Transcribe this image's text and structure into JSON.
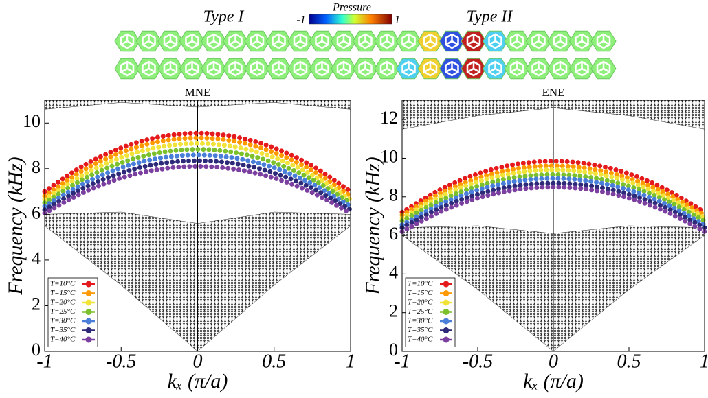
{
  "inset": {
    "left_label": "Type I",
    "right_label": "Type II",
    "colorbar_label": "Pressure",
    "colorbar_ticks": [
      -1,
      1
    ]
  },
  "chart_data": [
    {
      "type": "line",
      "title": "MNE",
      "xlabel": "kₓ (π/a)",
      "ylabel": "Frequency (kHz)",
      "xlim": [
        -1,
        1
      ],
      "xticks": [
        -1,
        -0.5,
        0,
        0.5,
        1
      ],
      "ylim": [
        0,
        11
      ],
      "yticks": [
        0,
        2,
        4,
        6,
        8,
        10
      ],
      "x": [
        -1,
        -0.75,
        -0.5,
        -0.25,
        0,
        0.25,
        0.5,
        0.75,
        1
      ],
      "bulk_bands": [
        {
          "x": [
            -1,
            -0.5,
            0,
            0.5,
            1
          ],
          "lower": [
            5.5,
            2.9,
            0,
            2.9,
            5.5
          ],
          "upper": [
            6.0,
            6.1,
            5.6,
            6.1,
            6.0
          ]
        },
        {
          "x": [
            -1,
            -0.5,
            0,
            0.5,
            1
          ],
          "lower": [
            10.6,
            10.9,
            10.7,
            10.9,
            10.6
          ],
          "upper": [
            11,
            11,
            11,
            11,
            11
          ]
        }
      ],
      "series": [
        {
          "name": "T=10°C",
          "color": "#e41a1c",
          "values": [
            7.0,
            8.12,
            8.91,
            9.39,
            9.55,
            9.39,
            8.91,
            8.12,
            7.0
          ]
        },
        {
          "name": "T=15°C",
          "color": "#ff9900",
          "values": [
            6.8,
            7.92,
            8.71,
            9.19,
            9.35,
            9.19,
            8.71,
            7.92,
            6.8
          ]
        },
        {
          "name": "T=20°C",
          "color": "#f2e33a",
          "values": [
            6.65,
            7.72,
            8.49,
            8.95,
            9.1,
            8.95,
            8.49,
            7.72,
            6.65
          ]
        },
        {
          "name": "T=25°C",
          "color": "#7cc02c",
          "values": [
            6.5,
            7.53,
            8.26,
            8.7,
            8.85,
            8.7,
            8.26,
            7.53,
            6.5
          ]
        },
        {
          "name": "T=30°C",
          "color": "#4a7fd9",
          "values": [
            6.35,
            7.33,
            8.04,
            8.46,
            8.6,
            8.46,
            8.04,
            7.33,
            6.35
          ]
        },
        {
          "name": "T=35°C",
          "color": "#2e2a7a",
          "values": [
            6.2,
            7.14,
            7.81,
            8.22,
            8.35,
            8.22,
            7.81,
            7.14,
            6.2
          ]
        },
        {
          "name": "T=40°C",
          "color": "#7b3fa0",
          "values": [
            6.05,
            6.95,
            7.59,
            7.97,
            8.1,
            7.97,
            7.59,
            6.95,
            6.05
          ]
        }
      ]
    },
    {
      "type": "line",
      "title": "ENE",
      "xlabel": "kₓ (π/a)",
      "ylabel": "Frequency (kHz)",
      "xlim": [
        -1,
        1
      ],
      "xticks": [
        -1,
        -0.5,
        0,
        0.5,
        1
      ],
      "ylim": [
        0,
        13
      ],
      "yticks": [
        0,
        2,
        4,
        6,
        8,
        10,
        12
      ],
      "x": [
        -1,
        -0.75,
        -0.5,
        -0.25,
        0,
        0.25,
        0.5,
        0.75,
        1
      ],
      "bulk_bands": [
        {
          "x": [
            -1,
            -0.5,
            0,
            0.5,
            1
          ],
          "lower": [
            6,
            3.2,
            0,
            3.2,
            6
          ],
          "upper": [
            6.4,
            6.5,
            6.1,
            6.5,
            6.4
          ]
        },
        {
          "x": [
            -1,
            -0.5,
            0,
            0.5,
            1
          ],
          "lower": [
            11.5,
            12.2,
            12.6,
            12.2,
            11.5
          ],
          "upper": [
            13,
            13,
            13,
            13,
            13
          ]
        }
      ],
      "series": [
        {
          "name": "T=10°C",
          "color": "#e41a1c",
          "values": [
            7.2,
            8.36,
            9.19,
            9.68,
            9.85,
            9.68,
            9.19,
            8.36,
            7.2
          ]
        },
        {
          "name": "T=15°C",
          "color": "#ff9900",
          "values": [
            7.05,
            8.17,
            8.96,
            9.44,
            9.6,
            9.44,
            8.96,
            8.17,
            7.05
          ]
        },
        {
          "name": "T=20°C",
          "color": "#f2e33a",
          "values": [
            6.9,
            7.99,
            8.78,
            9.24,
            9.4,
            9.24,
            8.78,
            7.99,
            6.9
          ]
        },
        {
          "name": "T=25°C",
          "color": "#7cc02c",
          "values": [
            6.75,
            7.8,
            8.55,
            9.0,
            9.15,
            9.0,
            8.55,
            7.8,
            6.75
          ]
        },
        {
          "name": "T=30°C",
          "color": "#4a7fd9",
          "values": [
            6.55,
            7.6,
            8.35,
            8.8,
            8.95,
            8.8,
            8.35,
            7.6,
            6.55
          ]
        },
        {
          "name": "T=35°C",
          "color": "#2e2a7a",
          "values": [
            6.4,
            7.41,
            8.13,
            8.56,
            8.7,
            8.56,
            8.13,
            7.41,
            6.4
          ]
        },
        {
          "name": "T=40°C",
          "color": "#7b3fa0",
          "values": [
            6.2,
            7.21,
            7.93,
            8.36,
            8.5,
            8.36,
            7.93,
            7.21,
            6.2
          ]
        }
      ]
    }
  ]
}
